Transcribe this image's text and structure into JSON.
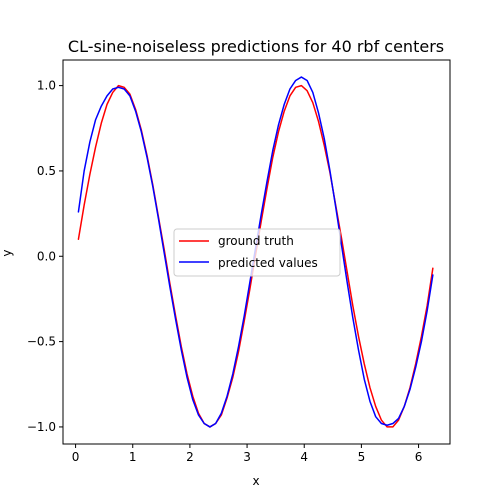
{
  "chart_data": {
    "type": "line",
    "title": "CL-sine-noiseless predictions for 40 rbf centers",
    "xlabel": "x",
    "ylabel": "y",
    "xlim": [
      -0.22,
      6.55
    ],
    "ylim": [
      -1.1,
      1.15
    ],
    "xticks": [
      0,
      1,
      2,
      3,
      4,
      5,
      6
    ],
    "yticks": [
      -1.0,
      -0.5,
      0.0,
      0.5,
      1.0
    ],
    "xtick_labels": [
      "0",
      "1",
      "2",
      "3",
      "4",
      "5",
      "6"
    ],
    "ytick_labels": [
      "−1.0",
      "−0.5",
      "0.0",
      "0.5",
      "1.0"
    ],
    "grid": false,
    "legend_position": "center",
    "series": [
      {
        "name": "ground truth",
        "color": "#ff0000",
        "x": [
          0.05,
          0.15,
          0.25,
          0.35,
          0.45,
          0.55,
          0.65,
          0.75,
          0.85,
          0.95,
          1.05,
          1.15,
          1.25,
          1.35,
          1.45,
          1.55,
          1.65,
          1.75,
          1.85,
          1.95,
          2.05,
          2.15,
          2.25,
          2.35,
          2.45,
          2.55,
          2.65,
          2.75,
          2.85,
          2.95,
          3.05,
          3.15,
          3.25,
          3.35,
          3.45,
          3.55,
          3.65,
          3.75,
          3.85,
          3.95,
          4.05,
          4.15,
          4.25,
          4.35,
          4.45,
          4.55,
          4.65,
          4.75,
          4.85,
          4.95,
          5.05,
          5.15,
          5.25,
          5.35,
          5.45,
          5.55,
          5.65,
          5.75,
          5.85,
          5.95,
          6.05,
          6.15,
          6.25
        ],
        "y": [
          0.1,
          0.3,
          0.48,
          0.64,
          0.78,
          0.89,
          0.96,
          1.0,
          0.99,
          0.95,
          0.86,
          0.74,
          0.59,
          0.42,
          0.23,
          0.04,
          -0.16,
          -0.35,
          -0.53,
          -0.69,
          -0.82,
          -0.92,
          -0.98,
          -1.0,
          -0.98,
          -0.93,
          -0.83,
          -0.71,
          -0.56,
          -0.38,
          -0.19,
          0.01,
          0.21,
          0.4,
          0.58,
          0.73,
          0.85,
          0.94,
          0.99,
          1.0,
          0.97,
          0.9,
          0.79,
          0.65,
          0.49,
          0.3,
          0.11,
          -0.09,
          -0.29,
          -0.47,
          -0.63,
          -0.77,
          -0.88,
          -0.96,
          -1.0,
          -1.0,
          -0.96,
          -0.88,
          -0.77,
          -0.63,
          -0.47,
          -0.29,
          -0.07
        ]
      },
      {
        "name": "predicted values",
        "color": "#0000ff",
        "x": [
          0.05,
          0.15,
          0.25,
          0.35,
          0.45,
          0.55,
          0.65,
          0.75,
          0.85,
          0.95,
          1.05,
          1.15,
          1.25,
          1.35,
          1.45,
          1.55,
          1.65,
          1.75,
          1.85,
          1.95,
          2.05,
          2.15,
          2.25,
          2.35,
          2.45,
          2.55,
          2.65,
          2.75,
          2.85,
          2.95,
          3.05,
          3.15,
          3.25,
          3.35,
          3.45,
          3.55,
          3.65,
          3.75,
          3.85,
          3.95,
          4.05,
          4.15,
          4.25,
          4.35,
          4.45,
          4.55,
          4.65,
          4.75,
          4.85,
          4.95,
          5.05,
          5.15,
          5.25,
          5.35,
          5.45,
          5.55,
          5.65,
          5.75,
          5.85,
          5.95,
          6.05,
          6.15,
          6.25
        ],
        "y": [
          0.26,
          0.5,
          0.67,
          0.8,
          0.88,
          0.94,
          0.98,
          0.99,
          0.98,
          0.94,
          0.85,
          0.73,
          0.58,
          0.41,
          0.22,
          0.02,
          -0.18,
          -0.37,
          -0.55,
          -0.71,
          -0.84,
          -0.93,
          -0.98,
          -1.0,
          -0.98,
          -0.92,
          -0.82,
          -0.69,
          -0.53,
          -0.35,
          -0.15,
          0.05,
          0.25,
          0.44,
          0.62,
          0.77,
          0.89,
          0.98,
          1.03,
          1.05,
          1.03,
          0.96,
          0.84,
          0.69,
          0.5,
          0.29,
          0.07,
          -0.15,
          -0.36,
          -0.55,
          -0.72,
          -0.85,
          -0.94,
          -0.98,
          -0.99,
          -0.98,
          -0.95,
          -0.88,
          -0.78,
          -0.65,
          -0.5,
          -0.32,
          -0.11
        ]
      }
    ]
  }
}
